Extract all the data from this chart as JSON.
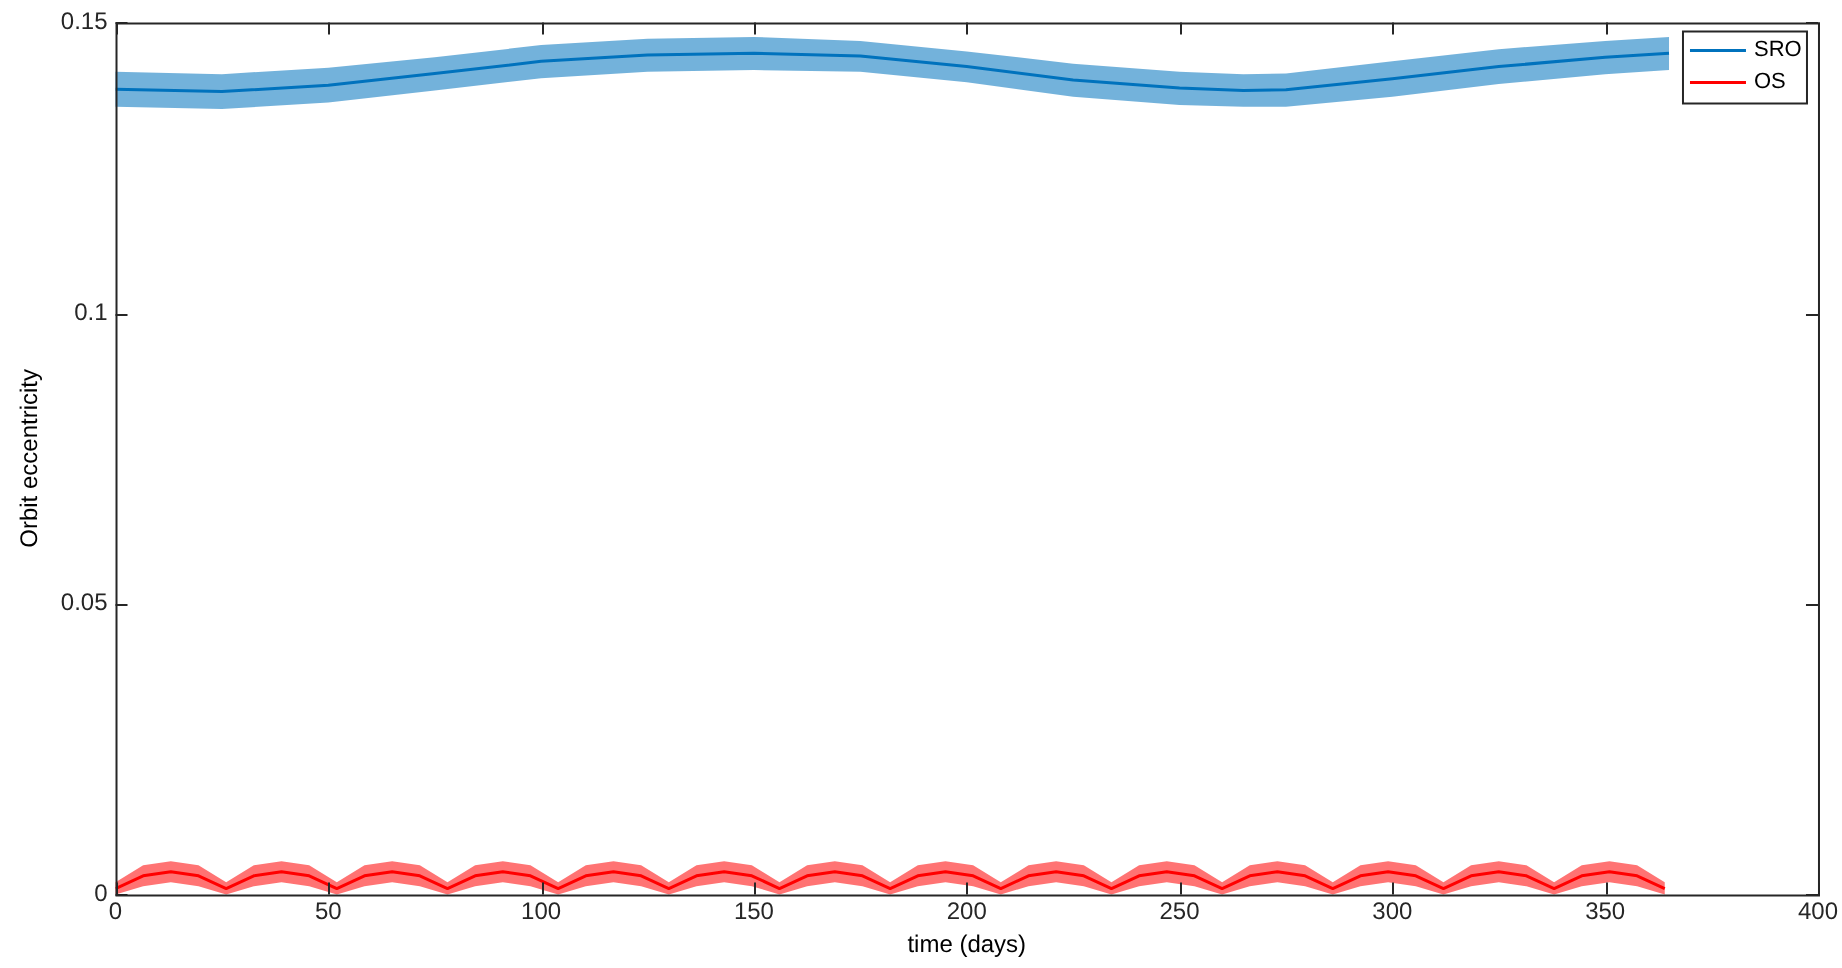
{
  "chart_data": {
    "type": "line",
    "xlabel": "time (days)",
    "ylabel": "Orbit eccentricity",
    "xlim": [
      0,
      400
    ],
    "xticks": [
      0,
      50,
      100,
      150,
      200,
      250,
      300,
      350,
      400
    ],
    "ylim": [
      0,
      0.15
    ],
    "yticks": [
      0,
      0.05,
      0.1,
      0.15
    ],
    "grid": false,
    "legend": "top right",
    "marker": "none",
    "line_style": "solid",
    "series": [
      {
        "name": "SRO",
        "color": "#0072bd",
        "x": [
          0,
          25,
          50,
          75,
          100,
          125,
          150,
          175,
          200,
          225,
          250,
          265,
          275,
          300,
          325,
          350,
          365
        ],
        "values": [
          0.1385,
          0.1381,
          0.1392,
          0.1412,
          0.1433,
          0.1444,
          0.1447,
          0.1442,
          0.1424,
          0.1401,
          0.1387,
          0.1383,
          0.1384,
          0.1403,
          0.1424,
          0.144,
          0.1447
        ],
        "lower": [
          0.1355,
          0.1351,
          0.1362,
          0.1383,
          0.1404,
          0.1415,
          0.1418,
          0.1415,
          0.1397,
          0.1372,
          0.1358,
          0.1355,
          0.1355,
          0.1372,
          0.1394,
          0.1411,
          0.1418
        ],
        "upper": [
          0.1415,
          0.1411,
          0.1422,
          0.144,
          0.1461,
          0.1472,
          0.1475,
          0.1468,
          0.145,
          0.1429,
          0.1415,
          0.1411,
          0.1412,
          0.1433,
          0.1454,
          0.1468,
          0.1475
        ]
      },
      {
        "name": "OS",
        "color": "#ff0000",
        "x": [
          0,
          6.5,
          13,
          19.5,
          26,
          32.5,
          39,
          45.5,
          52,
          58.5,
          65,
          71.5,
          78,
          84.5,
          91,
          97.5,
          104,
          110.5,
          117,
          123.5,
          130,
          136.5,
          143,
          149.5,
          156,
          162.5,
          169,
          175.5,
          182,
          188.5,
          195,
          201.5,
          208,
          214.5,
          221,
          227.5,
          234,
          240.5,
          247,
          253.5,
          260,
          266.5,
          273,
          279.5,
          286,
          292.5,
          299,
          305.5,
          312,
          318.5,
          325,
          331.5,
          338,
          344.5,
          351,
          357.5,
          364
        ],
        "values": [
          0.001,
          0.0032,
          0.0039,
          0.0032,
          0.001,
          0.0032,
          0.0039,
          0.0032,
          0.001,
          0.0032,
          0.0039,
          0.0032,
          0.001,
          0.0032,
          0.0039,
          0.0032,
          0.001,
          0.0032,
          0.0039,
          0.0032,
          0.001,
          0.0032,
          0.0039,
          0.0032,
          0.001,
          0.0032,
          0.0039,
          0.0032,
          0.001,
          0.0032,
          0.0039,
          0.0032,
          0.001,
          0.0032,
          0.0039,
          0.0032,
          0.001,
          0.0032,
          0.0039,
          0.0032,
          0.001,
          0.0032,
          0.0039,
          0.0032,
          0.001,
          0.0032,
          0.0039,
          0.0032,
          0.001,
          0.0032,
          0.0039,
          0.0032,
          0.001,
          0.0032,
          0.0039,
          0.0032,
          0.001
        ],
        "lower": [
          0,
          0.0014,
          0.0021,
          0.0014,
          0,
          0.0014,
          0.0021,
          0.0014,
          0,
          0.0014,
          0.0021,
          0.0014,
          0,
          0.0014,
          0.0021,
          0.0014,
          0,
          0.0014,
          0.0021,
          0.0014,
          0,
          0.0014,
          0.0021,
          0.0014,
          0,
          0.0014,
          0.0021,
          0.0014,
          0,
          0.0014,
          0.0021,
          0.0014,
          0,
          0.0014,
          0.0021,
          0.0014,
          0,
          0.0014,
          0.0021,
          0.0014,
          0,
          0.0014,
          0.0021,
          0.0014,
          0,
          0.0014,
          0.0021,
          0.0014,
          0,
          0.0014,
          0.0021,
          0.0014,
          0,
          0.0014,
          0.0021,
          0.0014,
          0
        ],
        "upper": [
          0.0021,
          0.005,
          0.0057,
          0.005,
          0.0021,
          0.005,
          0.0057,
          0.005,
          0.0021,
          0.005,
          0.0057,
          0.005,
          0.0021,
          0.005,
          0.0057,
          0.005,
          0.0021,
          0.005,
          0.0057,
          0.005,
          0.0021,
          0.005,
          0.0057,
          0.005,
          0.0021,
          0.005,
          0.0057,
          0.005,
          0.0021,
          0.005,
          0.0057,
          0.005,
          0.0021,
          0.005,
          0.0057,
          0.005,
          0.0021,
          0.005,
          0.0057,
          0.005,
          0.0021,
          0.005,
          0.0057,
          0.005,
          0.0021,
          0.005,
          0.0057,
          0.005,
          0.0021,
          0.005,
          0.0057,
          0.005,
          0.0021,
          0.005,
          0.0057,
          0.005,
          0.0021
        ]
      }
    ]
  }
}
